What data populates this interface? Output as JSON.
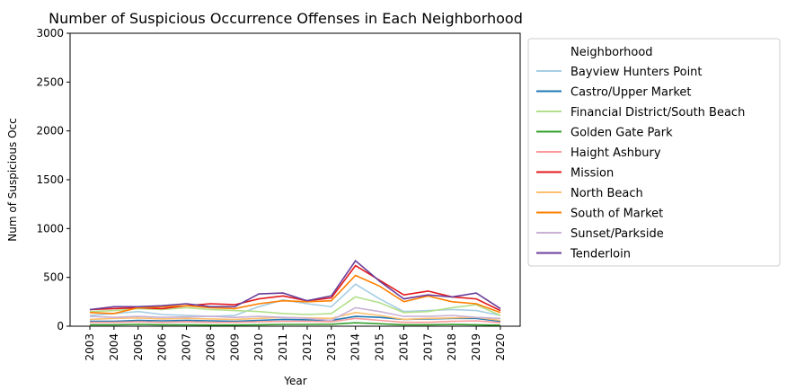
{
  "chart_data": {
    "type": "line",
    "title": "Number of Suspicious Occurrence Offenses in Each Neighborhood",
    "xlabel": "Year",
    "ylabel": "Num of Suspicious Occ",
    "ylim": [
      0,
      3000
    ],
    "yticks": [
      "0",
      "500",
      "1000",
      "1500",
      "2000",
      "2500",
      "3000"
    ],
    "x": [
      "2003",
      "2004",
      "2005",
      "2006",
      "2007",
      "2008",
      "2009",
      "2010",
      "2011",
      "2012",
      "2013",
      "2014",
      "2015",
      "2016",
      "2017",
      "2018",
      "2019",
      "2020"
    ],
    "grid": false,
    "legend": {
      "title": "Neighborhood",
      "placement": "outside-right"
    },
    "series": [
      {
        "name": "Bayview Hunters Point",
        "color": "#a6cee3",
        "values": [
          110,
          130,
          150,
          120,
          110,
          100,
          110,
          200,
          270,
          230,
          200,
          430,
          280,
          150,
          160,
          170,
          160,
          110
        ]
      },
      {
        "name": "Castro/Upper Market",
        "color": "#1f78b4",
        "values": [
          50,
          50,
          60,
          55,
          60,
          55,
          50,
          60,
          70,
          65,
          60,
          100,
          90,
          70,
          75,
          80,
          80,
          50
        ]
      },
      {
        "name": "Financial District/South Beach",
        "color": "#b2df8a",
        "values": [
          150,
          160,
          180,
          170,
          190,
          170,
          160,
          150,
          130,
          120,
          130,
          300,
          240,
          140,
          150,
          190,
          220,
          110
        ]
      },
      {
        "name": "Golden Gate Park",
        "color": "#33a02c",
        "values": [
          15,
          15,
          18,
          15,
          15,
          12,
          12,
          15,
          18,
          18,
          20,
          35,
          25,
          15,
          15,
          18,
          15,
          10
        ]
      },
      {
        "name": "Haight Ashbury",
        "color": "#fb9a99",
        "values": [
          40,
          40,
          45,
          40,
          45,
          40,
          40,
          45,
          50,
          50,
          45,
          80,
          60,
          40,
          40,
          50,
          55,
          35
        ]
      },
      {
        "name": "Mission",
        "color": "#e31a1c",
        "values": [
          170,
          180,
          190,
          180,
          210,
          230,
          220,
          280,
          310,
          260,
          290,
          620,
          470,
          320,
          360,
          300,
          280,
          160
        ]
      },
      {
        "name": "North Beach",
        "color": "#fdbf6f",
        "values": [
          70,
          80,
          85,
          75,
          80,
          75,
          70,
          80,
          90,
          85,
          80,
          140,
          110,
          70,
          80,
          85,
          90,
          60
        ]
      },
      {
        "name": "South of Market",
        "color": "#ff7f00",
        "values": [
          140,
          130,
          190,
          200,
          210,
          190,
          180,
          230,
          260,
          250,
          260,
          520,
          410,
          250,
          310,
          250,
          230,
          140
        ]
      },
      {
        "name": "Sunset/Parkside",
        "color": "#cab2d6",
        "values": [
          100,
          90,
          100,
          90,
          95,
          100,
          90,
          100,
          90,
          80,
          60,
          190,
          150,
          100,
          100,
          110,
          90,
          80
        ]
      },
      {
        "name": "Tenderloin",
        "color": "#6a3d9a",
        "values": [
          170,
          200,
          200,
          210,
          230,
          200,
          200,
          330,
          340,
          260,
          310,
          670,
          460,
          280,
          320,
          300,
          340,
          180
        ]
      }
    ]
  }
}
